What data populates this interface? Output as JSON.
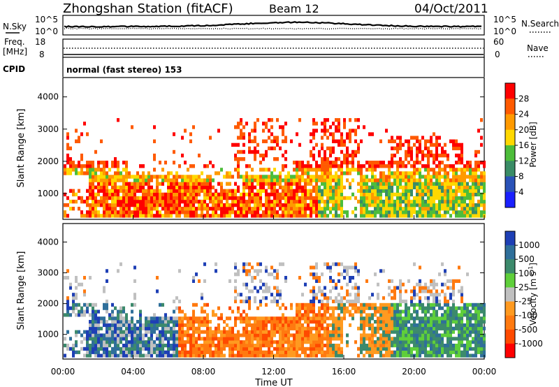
{
  "header": {
    "station": "Zhongshan Station (fitACF)",
    "beam": "Beam 12",
    "date": "04/Oct/2011"
  },
  "aux_panels": {
    "nsky_label": "N.Sky",
    "nsky_ticks": [
      "10^5",
      "10^0"
    ],
    "nsearch_label": "N.Search",
    "nsearch_ticks": [
      "10^5",
      "10^0"
    ],
    "freq_label_top": "Freq.",
    "freq_label_unit": "[MHz]",
    "freq_ticks": [
      "18",
      "8"
    ],
    "nave_label": "Nave",
    "nave_ticks": [
      "60",
      "0"
    ],
    "cpid_label": "CPID",
    "cpid_text": "normal (fast stereo) 153"
  },
  "chart_data": [
    {
      "type": "heatmap",
      "name": "power",
      "ylabel": "Slant Range [km]",
      "yticks": [
        "4000",
        "3000",
        "2000",
        "1000"
      ],
      "ylim": [
        200,
        4600
      ],
      "colorbar_label": "Power [dB]",
      "colorbar_ticks": [
        "28",
        "24",
        "20",
        "16",
        "12",
        "8",
        "4"
      ],
      "colorbar_colors": [
        "#ff0000",
        "#ff5a00",
        "#ff9a00",
        "#ffd800",
        "#4dbd3a",
        "#3a8c66",
        "#2a52b8",
        "#1a20ff"
      ]
    },
    {
      "type": "heatmap",
      "name": "velocity",
      "ylabel": "Slant Range [km]",
      "yticks": [
        "4000",
        "3000",
        "2000",
        "1000"
      ],
      "ylim": [
        200,
        4600
      ],
      "colorbar_label": "Velocity [m s",
      "colorbar_label_sup": "-1",
      "colorbar_label_end": "]",
      "colorbar_ticks": [
        "1000",
        "500",
        "100",
        "25",
        "-25",
        "-100",
        "-500",
        "-1000"
      ],
      "colorbar_colors": [
        "#1e3fb5",
        "#2f6f9a",
        "#3c8a6c",
        "#5fcf3a",
        "#c0c0c0",
        "#ff9a20",
        "#ff7a10",
        "#ff4a00",
        "#ff0000"
      ]
    }
  ],
  "xaxis": {
    "label": "Time UT",
    "ticks": [
      "00:00",
      "04:00",
      "08:00",
      "12:00",
      "16:00",
      "20:00",
      "00:00"
    ]
  }
}
